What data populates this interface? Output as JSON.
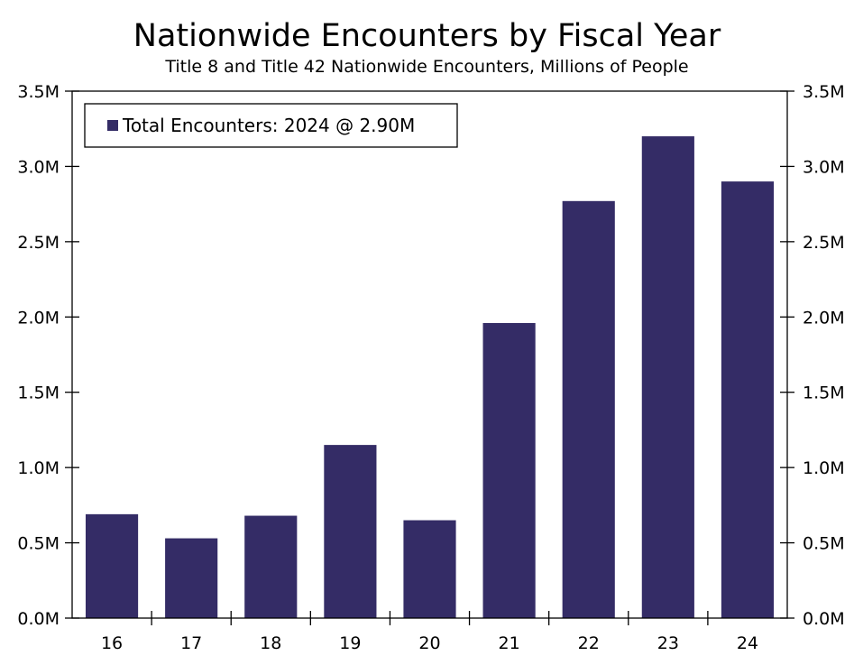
{
  "chart_data": {
    "type": "bar",
    "title": "Nationwide Encounters by Fiscal Year",
    "subtitle": "Title 8 and Title 42 Nationwide Encounters, Millions of People",
    "categories": [
      "16",
      "17",
      "18",
      "19",
      "20",
      "21",
      "22",
      "23",
      "24"
    ],
    "series": [
      {
        "name": "Total Encounters: 2024 @ 2.90M",
        "values": [
          0.69,
          0.53,
          0.68,
          1.15,
          0.65,
          1.96,
          2.77,
          3.2,
          2.9
        ],
        "color": "#342C66"
      }
    ],
    "ylim": [
      0,
      3.5
    ],
    "y_ticks": [
      "0.0M",
      "0.5M",
      "1.0M",
      "1.5M",
      "2.0M",
      "2.5M",
      "3.0M",
      "3.5M"
    ],
    "y_tick_values": [
      0,
      0.5,
      1.0,
      1.5,
      2.0,
      2.5,
      3.0,
      3.5
    ],
    "xlabel": "",
    "ylabel": "",
    "legend": {
      "placement": "top-left",
      "text": "Total Encounters: 2024 @ 2.90M"
    },
    "grid": false
  }
}
